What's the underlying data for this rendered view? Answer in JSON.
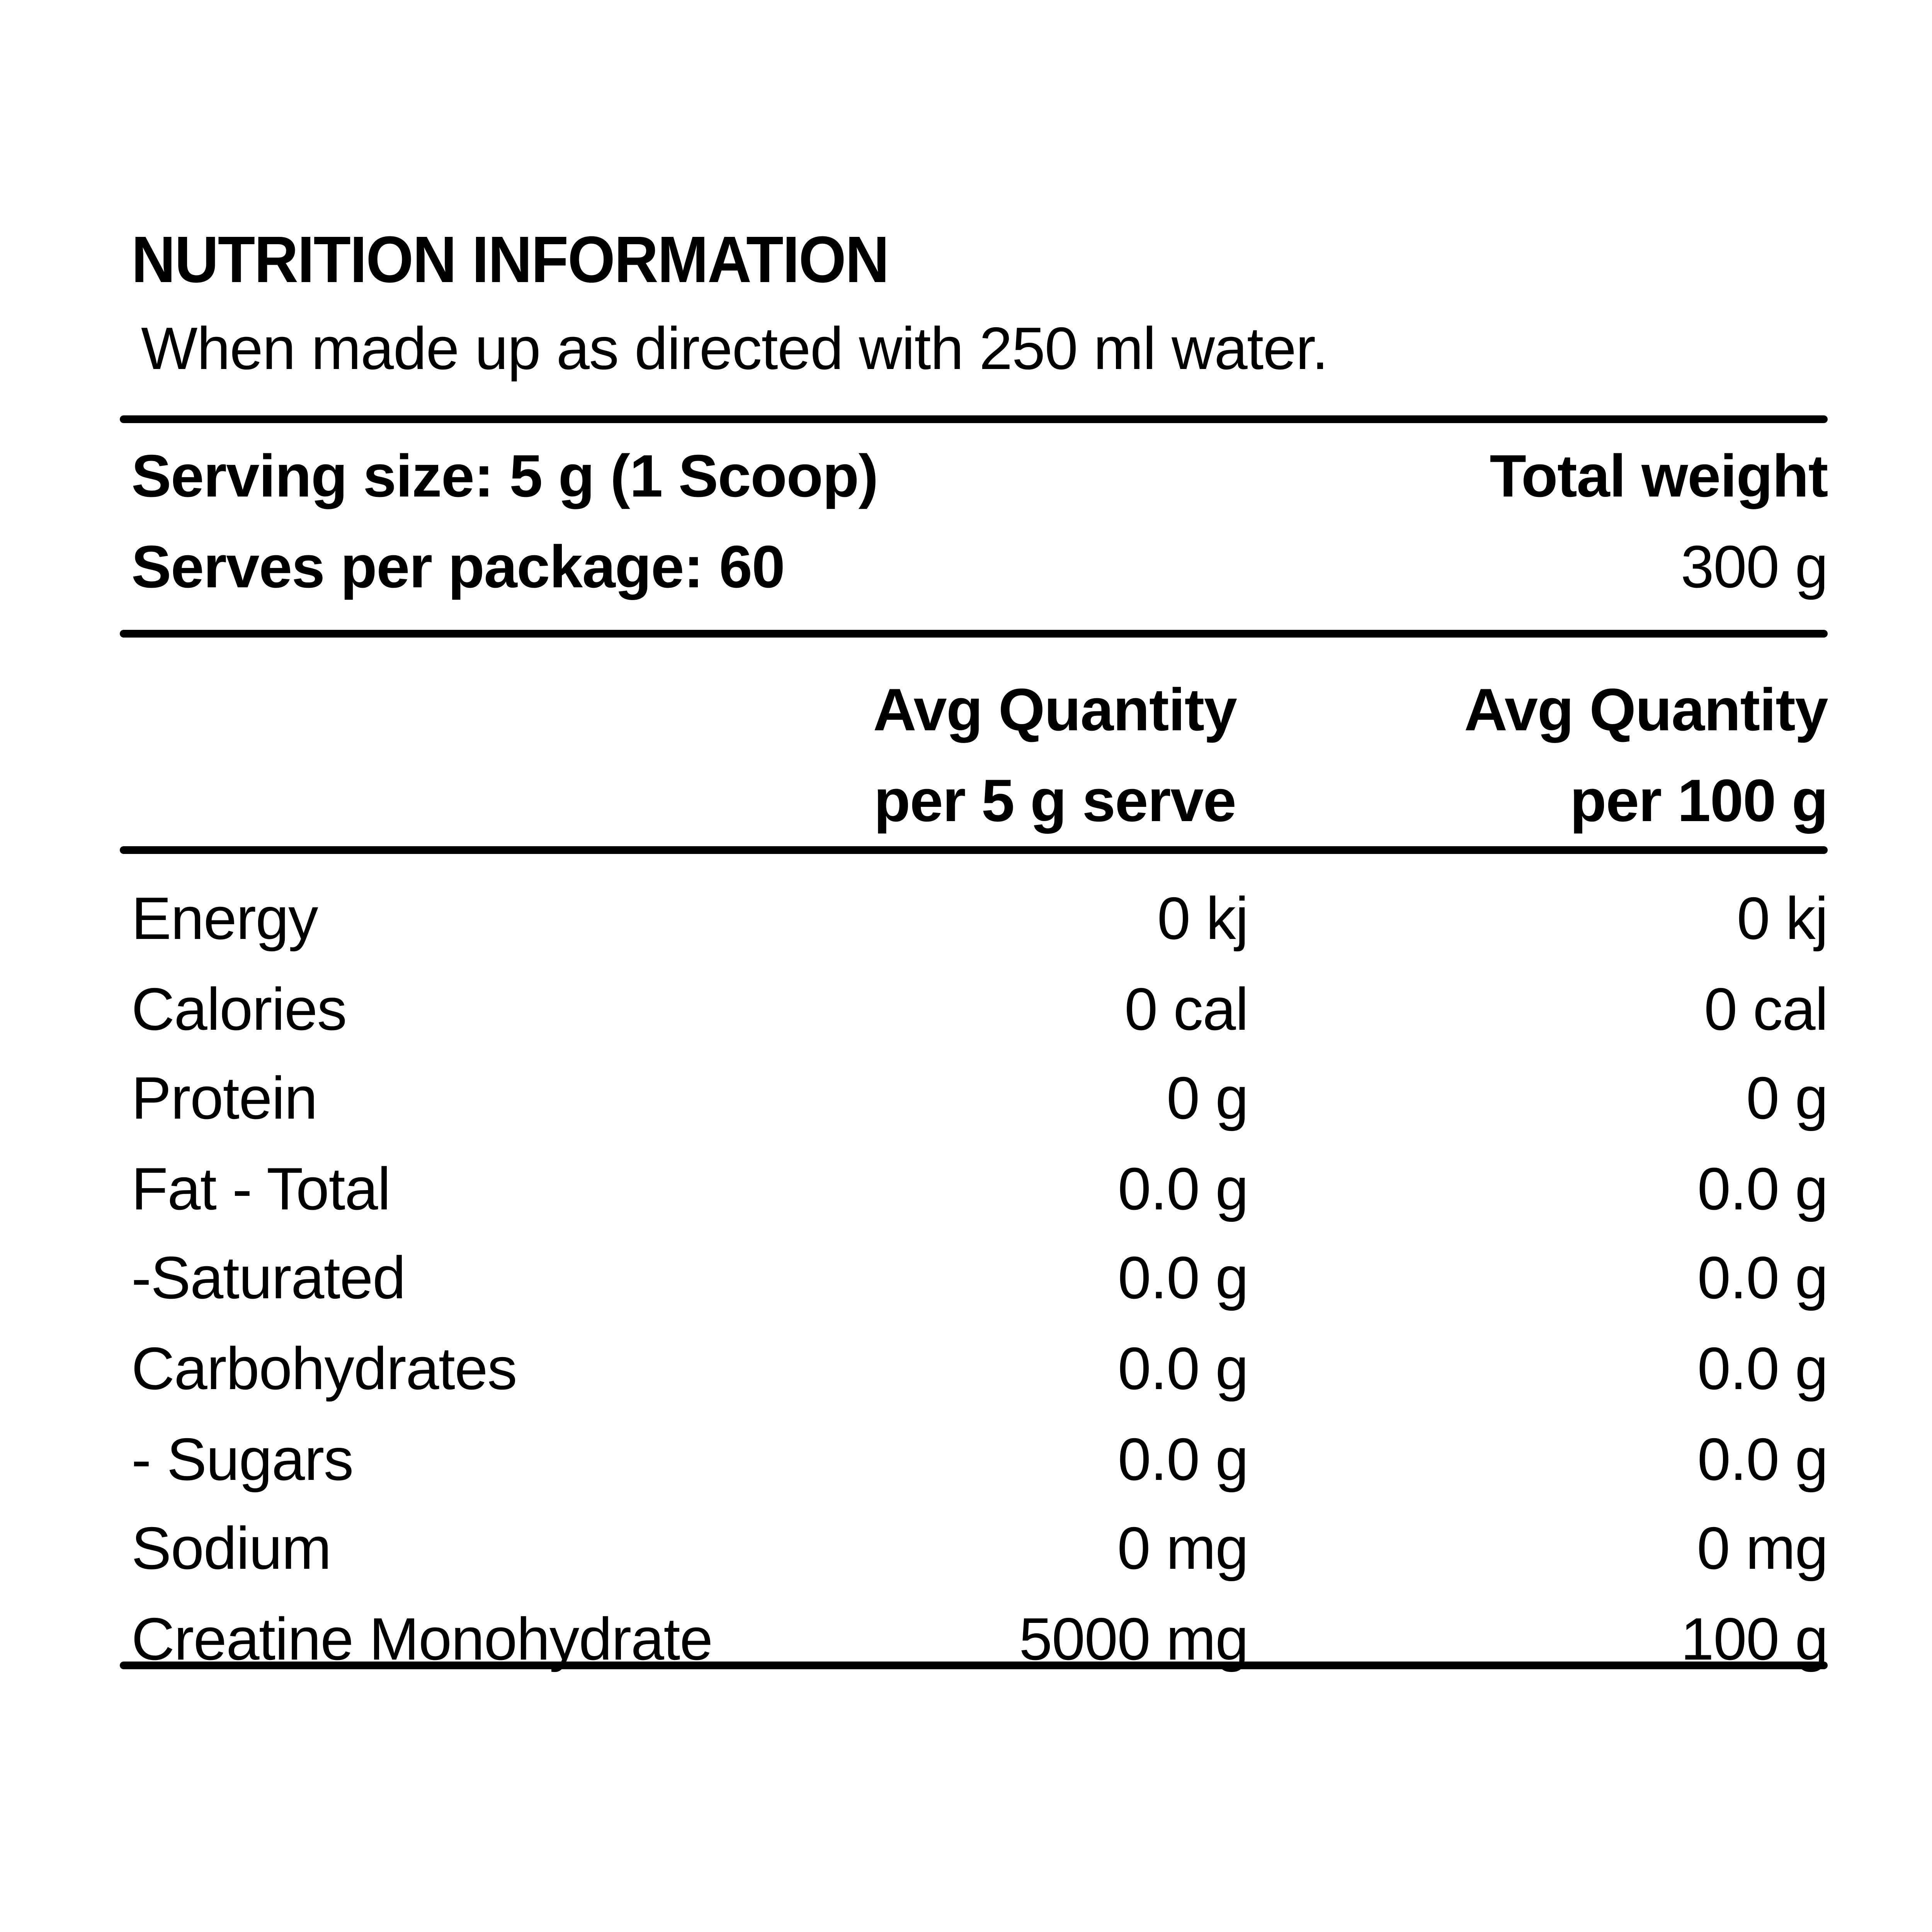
{
  "header": {
    "title": "NUTRITION INFORMATION",
    "subtitle": "When made up as directed with 250 ml water."
  },
  "serving": {
    "serving_size": "Serving size: 5 g (1 Scoop)",
    "total_weight_label": "Total weight",
    "serves_per_package": "Serves per package: 60",
    "total_weight_value": "300 g"
  },
  "columns": {
    "per_serve": {
      "line1": "Avg Quantity",
      "line2": "per 5 g serve"
    },
    "per_100g": {
      "line1": "Avg Quantity",
      "line2": "per 100 g"
    }
  },
  "table": {
    "rows": [
      {
        "label": "Energy",
        "per_serve": "0 kj",
        "per_100g": "0 kj"
      },
      {
        "label": "Calories",
        "per_serve": "0 cal",
        "per_100g": "0 cal"
      },
      {
        "label": "Protein",
        "per_serve": "0 g",
        "per_100g": "0 g"
      },
      {
        "label": "Fat - Total",
        "per_serve": "0.0 g",
        "per_100g": "0.0 g"
      },
      {
        "label": "-Saturated",
        "per_serve": "0.0 g",
        "per_100g": "0.0 g"
      },
      {
        "label": "Carbohydrates",
        "per_serve": "0.0 g",
        "per_100g": "0.0 g"
      },
      {
        "label": "- Sugars",
        "per_serve": "0.0 g",
        "per_100g": "0.0 g"
      },
      {
        "label": "Sodium",
        "per_serve": "0 mg",
        "per_100g": "0 mg"
      },
      {
        "label": "Creatine Monohydrate",
        "per_serve": "5000 mg",
        "per_100g": "100 g"
      }
    ]
  },
  "colors": {
    "text": "#000000",
    "background": "#ffffff"
  }
}
